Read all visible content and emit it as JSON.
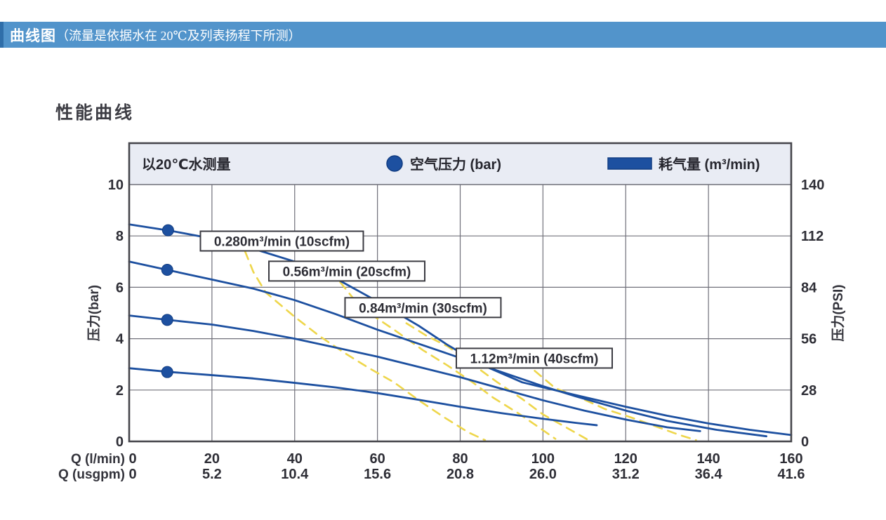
{
  "header": {
    "title_bold": "曲线图",
    "title_note": "（流量是依据水在 20℃及列表扬程下所测）"
  },
  "chart_data": {
    "type": "line",
    "title": "性能曲线",
    "legend": {
      "measure_note": "以20℃水测量",
      "air_pressure_label": "空气压力 (bar)",
      "air_consumption_label": "耗气量 (m³/min)",
      "position": "top-band"
    },
    "axes": {
      "y_left": {
        "label": "压力(bar)",
        "ticks": [
          "10",
          "8",
          "6",
          "4",
          "2",
          "0"
        ],
        "range": [
          0,
          10
        ],
        "grid": true
      },
      "y_right": {
        "label": "压力(PSI)",
        "ticks": [
          "140",
          "112",
          "84",
          "56",
          "28",
          "0"
        ],
        "range": [
          0,
          140
        ]
      },
      "x_primary": {
        "label": "Q (l/min)",
        "ticks": [
          "0",
          "20",
          "40",
          "60",
          "80",
          "100",
          "120",
          "140",
          "160"
        ],
        "range": [
          0,
          160
        ],
        "grid": true
      },
      "x_secondary": {
        "label": "Q (usgpm)",
        "ticks": [
          "0",
          "5.2",
          "10.4",
          "15.6",
          "20.8",
          "26.0",
          "31.2",
          "36.4",
          "41.6"
        ],
        "range": [
          0,
          41.6
        ]
      }
    },
    "series": [
      {
        "name": "air-pressure-8.4bar",
        "marker": [
          9.4,
          8.22
        ],
        "points": [
          [
            0,
            8.45
          ],
          [
            10,
            8.2
          ],
          [
            20,
            7.9
          ],
          [
            30,
            7.5
          ],
          [
            40,
            7.0
          ],
          [
            51,
            6.25
          ],
          [
            60,
            5.45
          ],
          [
            70,
            4.5
          ],
          [
            77,
            3.75
          ],
          [
            85,
            3.0
          ],
          [
            95,
            2.3
          ],
          [
            108,
            1.8
          ],
          [
            120,
            1.35
          ],
          [
            130,
            1.0
          ],
          [
            140,
            0.7
          ],
          [
            150,
            0.45
          ],
          [
            160,
            0.25
          ]
        ]
      },
      {
        "name": "air-pressure-7.0bar",
        "marker": [
          9.2,
          6.68
        ],
        "points": [
          [
            0,
            7.0
          ],
          [
            10,
            6.65
          ],
          [
            20,
            6.3
          ],
          [
            30,
            5.95
          ],
          [
            40,
            5.5
          ],
          [
            50,
            4.95
          ],
          [
            60,
            4.35
          ],
          [
            70,
            3.8
          ],
          [
            80,
            3.25
          ],
          [
            90,
            2.7
          ],
          [
            100,
            2.15
          ],
          [
            108,
            1.75
          ],
          [
            120,
            1.2
          ],
          [
            130,
            0.8
          ],
          [
            142,
            0.45
          ],
          [
            154,
            0.2
          ]
        ]
      },
      {
        "name": "air-pressure-4.9bar",
        "marker": [
          9.2,
          4.73
        ],
        "points": [
          [
            0,
            4.9
          ],
          [
            10,
            4.72
          ],
          [
            20,
            4.55
          ],
          [
            30,
            4.3
          ],
          [
            40,
            4.0
          ],
          [
            50,
            3.65
          ],
          [
            60,
            3.3
          ],
          [
            70,
            2.9
          ],
          [
            80,
            2.5
          ],
          [
            90,
            2.05
          ],
          [
            100,
            1.6
          ],
          [
            110,
            1.2
          ],
          [
            120,
            0.85
          ],
          [
            130,
            0.55
          ],
          [
            138,
            0.4
          ]
        ]
      },
      {
        "name": "air-pressure-2.8bar",
        "marker": [
          9.2,
          2.7
        ],
        "points": [
          [
            0,
            2.85
          ],
          [
            10,
            2.7
          ],
          [
            20,
            2.58
          ],
          [
            30,
            2.45
          ],
          [
            40,
            2.28
          ],
          [
            50,
            2.1
          ],
          [
            60,
            1.88
          ],
          [
            70,
            1.62
          ],
          [
            80,
            1.35
          ],
          [
            90,
            1.1
          ],
          [
            100,
            0.88
          ],
          [
            108,
            0.72
          ],
          [
            113,
            0.63
          ]
        ]
      }
    ],
    "consumption_curves": [
      {
        "name": "0.280 m3/min",
        "points": [
          [
            28,
            7.4
          ],
          [
            30,
            6.6
          ],
          [
            33,
            5.8
          ],
          [
            40,
            4.85
          ],
          [
            46,
            4.1
          ],
          [
            52,
            3.45
          ],
          [
            58,
            2.85
          ],
          [
            64,
            2.3
          ],
          [
            70,
            1.6
          ],
          [
            76,
            0.95
          ],
          [
            82,
            0.35
          ],
          [
            86,
            0.05
          ]
        ]
      },
      {
        "name": "0.56 m3/min",
        "points": [
          [
            51,
            6.2
          ],
          [
            54,
            5.6
          ],
          [
            58,
            5.0
          ],
          [
            64,
            4.35
          ],
          [
            71,
            3.55
          ],
          [
            77,
            2.95
          ],
          [
            83,
            2.3
          ],
          [
            88,
            1.7
          ],
          [
            94,
            1.1
          ],
          [
            99,
            0.55
          ],
          [
            103,
            0.1
          ]
        ]
      },
      {
        "name": "0.84 m3/min",
        "points": [
          [
            67,
            4.6
          ],
          [
            72,
            4.1
          ],
          [
            77,
            3.7
          ],
          [
            83,
            3.0
          ],
          [
            89,
            2.3
          ],
          [
            95,
            1.65
          ],
          [
            100,
            1.05
          ],
          [
            105,
            0.6
          ],
          [
            111,
            0.05
          ]
        ]
      },
      {
        "name": "1.12 m3/min",
        "points": [
          [
            98,
            2.75
          ],
          [
            103,
            2.07
          ],
          [
            109,
            1.7
          ],
          [
            115,
            1.26
          ],
          [
            121,
            0.95
          ],
          [
            127,
            0.6
          ],
          [
            133,
            0.25
          ],
          [
            137,
            0.05
          ]
        ]
      }
    ],
    "annotations": [
      {
        "label": "0.280m³/min (10scfm)",
        "q": 36.9,
        "bar": 7.8
      },
      {
        "label": "0.56m³/min (20scfm)",
        "q": 52.6,
        "bar": 6.63
      },
      {
        "label": "0.84m³/min (30scfm)",
        "q": 71.0,
        "bar": 5.21
      },
      {
        "label": "1.12m³/min (40scfm)",
        "q": 97.9,
        "bar": 3.24
      }
    ],
    "colors": {
      "curve_blue": "#1d50a0",
      "curve_blue_dark": "#123d82",
      "consumption_yellow": "#eed64b",
      "grid": "#70707a",
      "border": "#46464c",
      "band_bg": "#e9ecf4",
      "header_bg": "#5294cb",
      "tick_text": "#2e2e36"
    }
  }
}
